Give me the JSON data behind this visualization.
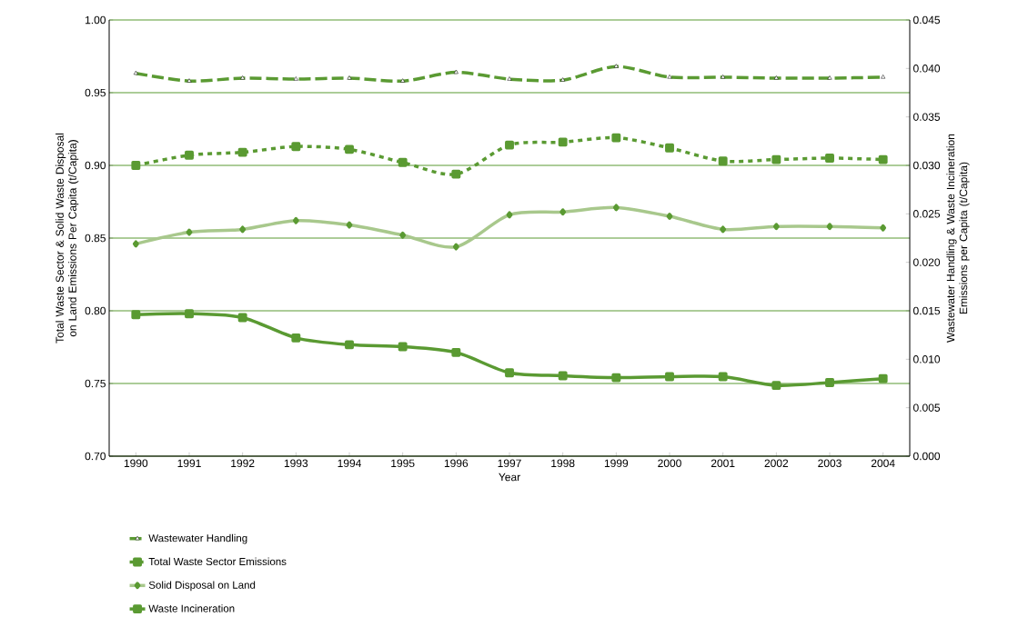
{
  "chart_data": {
    "type": "line",
    "xlabel": "Year",
    "ylabel": "Total Waste Sector & Solid Waste Disposal on Land Emissions Per Capita (t/Capita)",
    "y2label": "Wastewater Handling & Waste Incineration Emissions per Capita (t/Capita)",
    "categories": [
      "1990",
      "1991",
      "1992",
      "1993",
      "1994",
      "1995",
      "1996",
      "1997",
      "1998",
      "1999",
      "2000",
      "2001",
      "2002",
      "2003",
      "2004"
    ],
    "series": [
      {
        "name": "Wastewater Handling",
        "color": "#5a9a32",
        "axis": "y2",
        "marker": "triangle",
        "line_style": "dashed",
        "values": [
          0.0395,
          0.0387,
          0.039,
          0.0389,
          0.039,
          0.0387,
          0.0396,
          0.0389,
          0.0388,
          0.0402,
          0.0391,
          0.0391,
          0.039,
          0.039,
          0.0391
        ]
      },
      {
        "name": "Total Waste Sector Emissions",
        "color": "#5a9a32",
        "axis": "y",
        "marker": "square",
        "line_style": "dotted",
        "values": [
          0.9,
          0.907,
          0.909,
          0.913,
          0.911,
          0.902,
          0.894,
          0.914,
          0.916,
          0.919,
          0.912,
          0.903,
          0.904,
          0.905,
          0.904
        ]
      },
      {
        "name": "Solid Disposal on Land",
        "color": "#a8c88c",
        "axis": "y",
        "marker": "diamond",
        "line_style": "solid",
        "values": [
          0.846,
          0.854,
          0.856,
          0.862,
          0.859,
          0.852,
          0.844,
          0.866,
          0.868,
          0.871,
          0.865,
          0.856,
          0.858,
          0.858,
          0.857
        ]
      },
      {
        "name": "Waste Incineration",
        "color": "#5a9a32",
        "axis": "y2",
        "marker": "square",
        "line_style": "solid",
        "values": [
          0.0146,
          0.0147,
          0.0143,
          0.0122,
          0.0115,
          0.0113,
          0.0107,
          0.0086,
          0.0083,
          0.0081,
          0.0082,
          0.0082,
          0.0073,
          0.0076,
          0.008
        ]
      }
    ],
    "ylim": [
      0.7,
      1.0
    ],
    "yticks": [
      {
        "value": 0.7,
        "label": "0.70"
      },
      {
        "value": 0.75,
        "label": "0.75"
      },
      {
        "value": 0.8,
        "label": "0.80"
      },
      {
        "value": 0.85,
        "label": "0.85"
      },
      {
        "value": 0.9,
        "label": "0.90"
      },
      {
        "value": 0.95,
        "label": "0.95"
      },
      {
        "value": 1.0,
        "label": "1.00"
      }
    ],
    "y2lim": [
      0.0,
      0.045
    ],
    "y2ticks": [
      {
        "value": 0.0,
        "label": "0.000"
      },
      {
        "value": 0.005,
        "label": "0.005"
      },
      {
        "value": 0.01,
        "label": "0.010"
      },
      {
        "value": 0.015,
        "label": "0.015"
      },
      {
        "value": 0.02,
        "label": "0.020"
      },
      {
        "value": 0.025,
        "label": "0.025"
      },
      {
        "value": 0.03,
        "label": "0.030"
      },
      {
        "value": 0.035,
        "label": "0.035"
      },
      {
        "value": 0.04,
        "label": "0.040"
      },
      {
        "value": 0.045,
        "label": "0.045"
      }
    ],
    "grid": "y",
    "legend": "bottom"
  }
}
